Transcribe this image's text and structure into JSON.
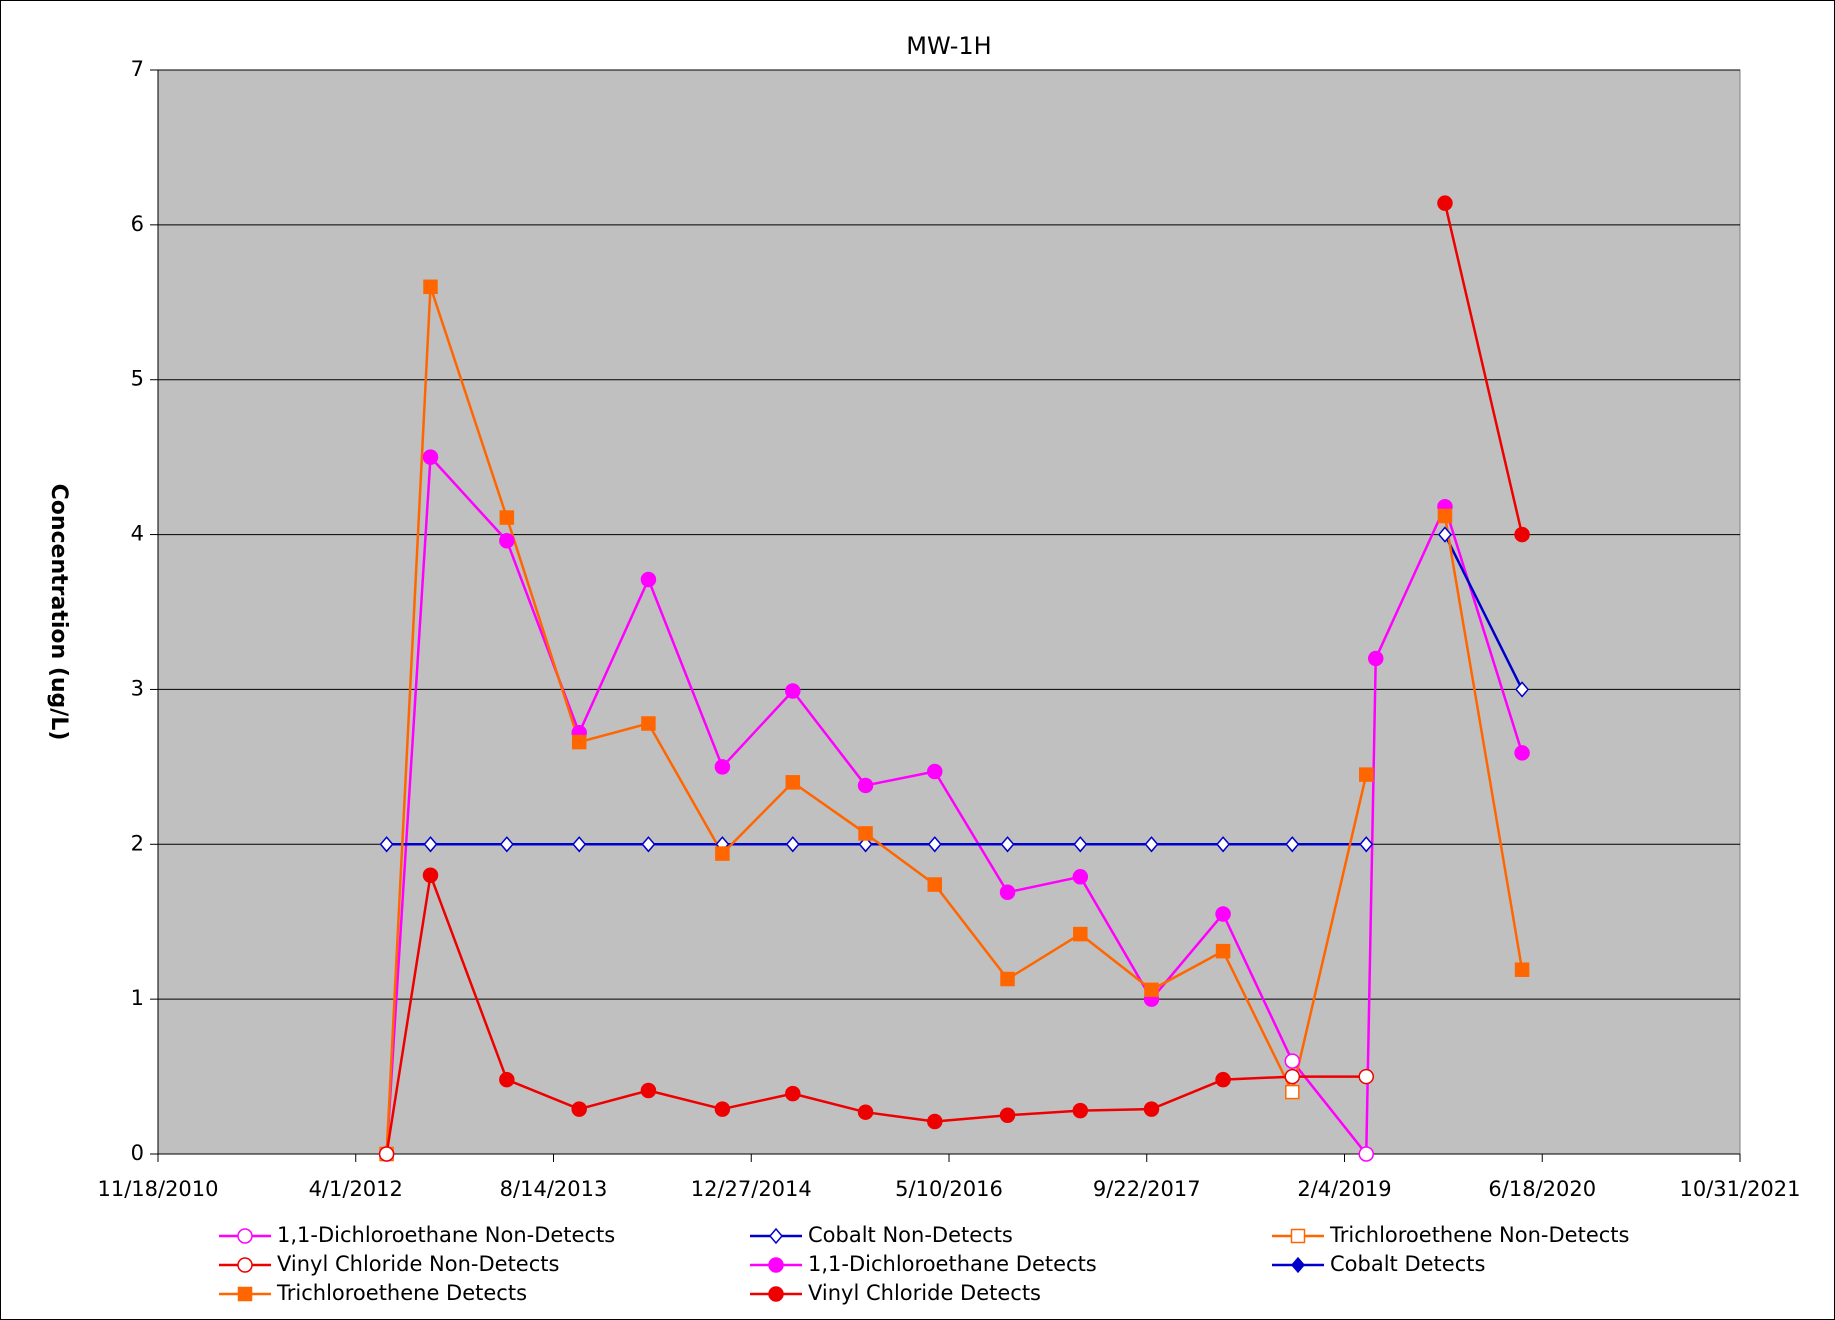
{
  "chart_data": {
    "type": "line",
    "title": "MW-1H",
    "ylabel": "Concentration (ug/L)",
    "x": [
      "2012-06-18",
      "2012-10-07",
      "2013-04-18",
      "2013-10-18",
      "2014-04-11",
      "2014-10-15",
      "2015-04-11",
      "2015-10-12",
      "2016-04-04",
      "2016-10-05",
      "2017-04-07",
      "2017-10-04",
      "2018-04-03",
      "2018-09-25",
      "2019-03-31",
      "2019-04-24",
      "2019-10-16",
      "2020-04-28"
    ],
    "xlim": [
      "2010-11-18",
      "2021-10-31"
    ],
    "xticks": [
      {
        "value": "2010-11-18",
        "label": "11/18/2010"
      },
      {
        "value": "2012-04-01",
        "label": "4/1/2012"
      },
      {
        "value": "2013-08-14",
        "label": "8/14/2013"
      },
      {
        "value": "2014-12-27",
        "label": "12/27/2014"
      },
      {
        "value": "2016-05-10",
        "label": "5/10/2016"
      },
      {
        "value": "2017-09-22",
        "label": "9/22/2017"
      },
      {
        "value": "2019-02-04",
        "label": "2/4/2019"
      },
      {
        "value": "2020-06-18",
        "label": "6/18/2020"
      },
      {
        "value": "2021-10-31",
        "label": "10/31/2021"
      }
    ],
    "ylim": [
      0,
      7
    ],
    "yticks": [
      0,
      1,
      2,
      3,
      4,
      5,
      6,
      7
    ],
    "grid": true,
    "series": [
      {
        "name": "1,1-Dichloroethane Non-Detects",
        "color": "#ff00ff",
        "marker": "circle",
        "filled": false,
        "values": [
          0,
          null,
          null,
          null,
          null,
          null,
          null,
          null,
          null,
          null,
          null,
          null,
          null,
          0.6,
          0,
          null,
          null,
          null
        ]
      },
      {
        "name": "Cobalt Non-Detects",
        "color": "#0000cc",
        "marker": "diamond",
        "filled": false,
        "values": [
          2,
          2,
          2,
          2,
          2,
          2,
          2,
          2,
          2,
          2,
          2,
          2,
          2,
          2,
          2,
          null,
          4,
          3
        ]
      },
      {
        "name": "Trichloroethene Non-Detects",
        "color": "#ff6600",
        "marker": "square",
        "filled": false,
        "values": [
          0,
          null,
          null,
          null,
          null,
          null,
          null,
          null,
          null,
          null,
          null,
          null,
          null,
          0.4,
          null,
          null,
          null,
          null
        ]
      },
      {
        "name": "Vinyl Chloride Non-Detects",
        "color": "#ee0000",
        "marker": "circle",
        "filled": false,
        "values": [
          0,
          null,
          null,
          null,
          null,
          null,
          null,
          null,
          null,
          null,
          null,
          null,
          null,
          0.5,
          0.5,
          null,
          null,
          null
        ]
      },
      {
        "name": "1,1-Dichloroethane Detects",
        "color": "#ff00ff",
        "marker": "circle",
        "filled": true,
        "values": [
          null,
          4.5,
          3.96,
          2.72,
          3.71,
          2.5,
          2.99,
          2.38,
          2.47,
          1.69,
          1.79,
          1.0,
          1.55,
          null,
          null,
          3.2,
          4.18,
          2.59
        ]
      },
      {
        "name": "Cobalt Detects",
        "color": "#0000cc",
        "marker": "diamond",
        "filled": true,
        "values": [
          null,
          null,
          null,
          null,
          null,
          null,
          null,
          null,
          null,
          null,
          null,
          null,
          null,
          null,
          null,
          null,
          null,
          null
        ]
      },
      {
        "name": "Trichloroethene Detects",
        "color": "#ff6600",
        "marker": "square",
        "filled": true,
        "values": [
          null,
          5.6,
          4.11,
          2.66,
          2.78,
          1.94,
          2.4,
          2.07,
          1.74,
          1.13,
          1.42,
          1.06,
          1.31,
          null,
          2.45,
          null,
          4.12,
          1.19
        ]
      },
      {
        "name": "Vinyl Chloride Detects",
        "color": "#ee0000",
        "marker": "circle",
        "filled": true,
        "values": [
          null,
          1.8,
          0.48,
          0.29,
          0.41,
          0.29,
          0.39,
          0.27,
          0.21,
          0.25,
          0.28,
          0.29,
          0.48,
          null,
          null,
          null,
          6.14,
          4.0
        ]
      }
    ]
  }
}
